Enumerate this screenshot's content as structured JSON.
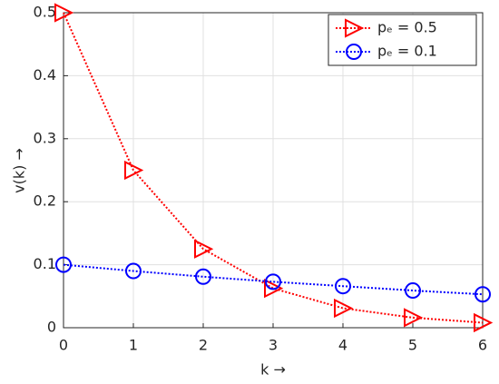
{
  "chart_data": {
    "type": "line",
    "x": [
      0,
      1,
      2,
      3,
      4,
      5,
      6
    ],
    "series": [
      {
        "name": "pₑ = 0.5",
        "color": "#ff0000",
        "marker": "triangle-right",
        "values": [
          0.5,
          0.25,
          0.125,
          0.0625,
          0.031,
          0.016,
          0.008
        ]
      },
      {
        "name": "pₑ = 0.1",
        "color": "#0000ff",
        "marker": "circle",
        "values": [
          0.1,
          0.09,
          0.081,
          0.073,
          0.066,
          0.059,
          0.053
        ]
      }
    ],
    "xlabel": "k →",
    "ylabel": "v(k) →",
    "xlim": [
      0,
      6
    ],
    "ylim": [
      0,
      0.5
    ],
    "xticks": [
      0,
      1,
      2,
      3,
      4,
      5,
      6
    ],
    "yticks": [
      0,
      0.1,
      0.2,
      0.3,
      0.4,
      0.5
    ],
    "grid": true,
    "legend_position": "northeast"
  }
}
